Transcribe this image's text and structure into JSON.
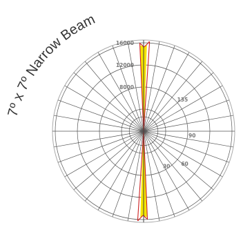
{
  "chart_data": {
    "type": "polar",
    "title": "7º x 7º Narrow Beam",
    "r_ticks": [
      4000,
      8000,
      12000,
      16000
    ],
    "r_tick_labels": [
      "8000",
      "12000",
      "16000"
    ],
    "r_max": 16500,
    "angle_labels": [
      "30",
      "60",
      "90",
      "135"
    ],
    "grid": true,
    "series": [
      {
        "color": "#cc1f1f",
        "points": [
          [
            0,
            15200
          ],
          [
            1,
            15400
          ],
          [
            2,
            15700
          ],
          [
            3,
            16000
          ],
          [
            3.5,
            16200
          ],
          [
            3.8,
            16200
          ],
          [
            -1,
            15600
          ],
          [
            -2,
            15800
          ],
          [
            -2.5,
            15900
          ]
        ]
      },
      {
        "color": "#f5e400",
        "points": [
          [
            0,
            15200
          ],
          [
            1,
            15400
          ],
          [
            2,
            15500
          ],
          [
            -1,
            15400
          ],
          [
            -2,
            15500
          ]
        ]
      }
    ],
    "colors": {
      "grid": "#555555",
      "red": "#cc1f1f",
      "yellow": "#f5e400",
      "title": "#333333",
      "ticks": "#777777"
    }
  }
}
